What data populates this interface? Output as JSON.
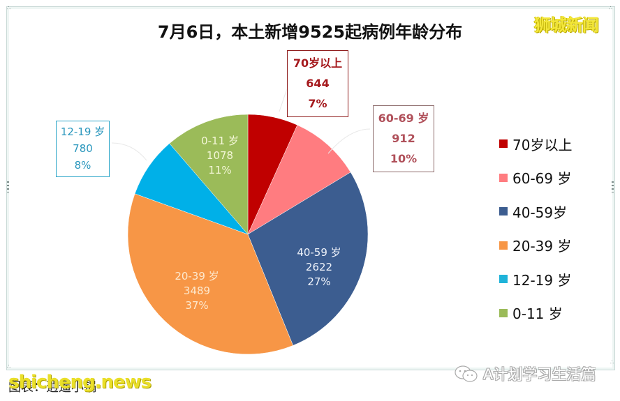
{
  "title": "7月6日，本土新增9525起病例年龄分布",
  "brand_watermark": "狮城新闻",
  "footer": {
    "source_label": "图表：",
    "source_text": "逍遥小锅",
    "watermark": "shicheng.news",
    "account": "A计划学习生活篇"
  },
  "chart_data": {
    "type": "pie",
    "title": "7月6日，本土新增9525起病例年龄分布",
    "total": 9525,
    "categories": [
      "70岁以上",
      "60-69 岁",
      "40-59岁",
      "20-39 岁",
      "12-19 岁",
      "0-11 岁"
    ],
    "values": [
      644,
      912,
      2622,
      3489,
      780,
      1078
    ],
    "percentages": [
      "7%",
      "10%",
      "27%",
      "37%",
      "8%",
      "11%"
    ],
    "colors": [
      "#c00000",
      "#ff7c80",
      "#3c5d90",
      "#f79646",
      "#00b0e8",
      "#9bbb59"
    ],
    "legend_position": "right",
    "start_angle": "12 o'clock, clockwise"
  },
  "slice_labels": [
    {
      "label": "70岁以上",
      "value": "644",
      "pct": "7%"
    },
    {
      "label": "60-69 岁",
      "value": "912",
      "pct": "10%"
    },
    {
      "label": "40-59 岁",
      "value": "2622",
      "pct": "27%"
    },
    {
      "label": "20-39 岁",
      "value": "3489",
      "pct": "37%"
    },
    {
      "label": "12-19 岁",
      "value": "780",
      "pct": "8%"
    },
    {
      "label": "0-11 岁",
      "value": "1078",
      "pct": "11%"
    }
  ],
  "legend": [
    {
      "label": "70岁以上",
      "color": "#c00000"
    },
    {
      "label": "60-69 岁",
      "color": "#ff7c80"
    },
    {
      "label": "40-59岁",
      "color": "#3c5d90"
    },
    {
      "label": "20-39 岁",
      "color": "#f79646"
    },
    {
      "label": "12-19 岁",
      "color": "#1fb3d9"
    },
    {
      "label": "0-11 岁",
      "color": "#9bbb59"
    }
  ]
}
